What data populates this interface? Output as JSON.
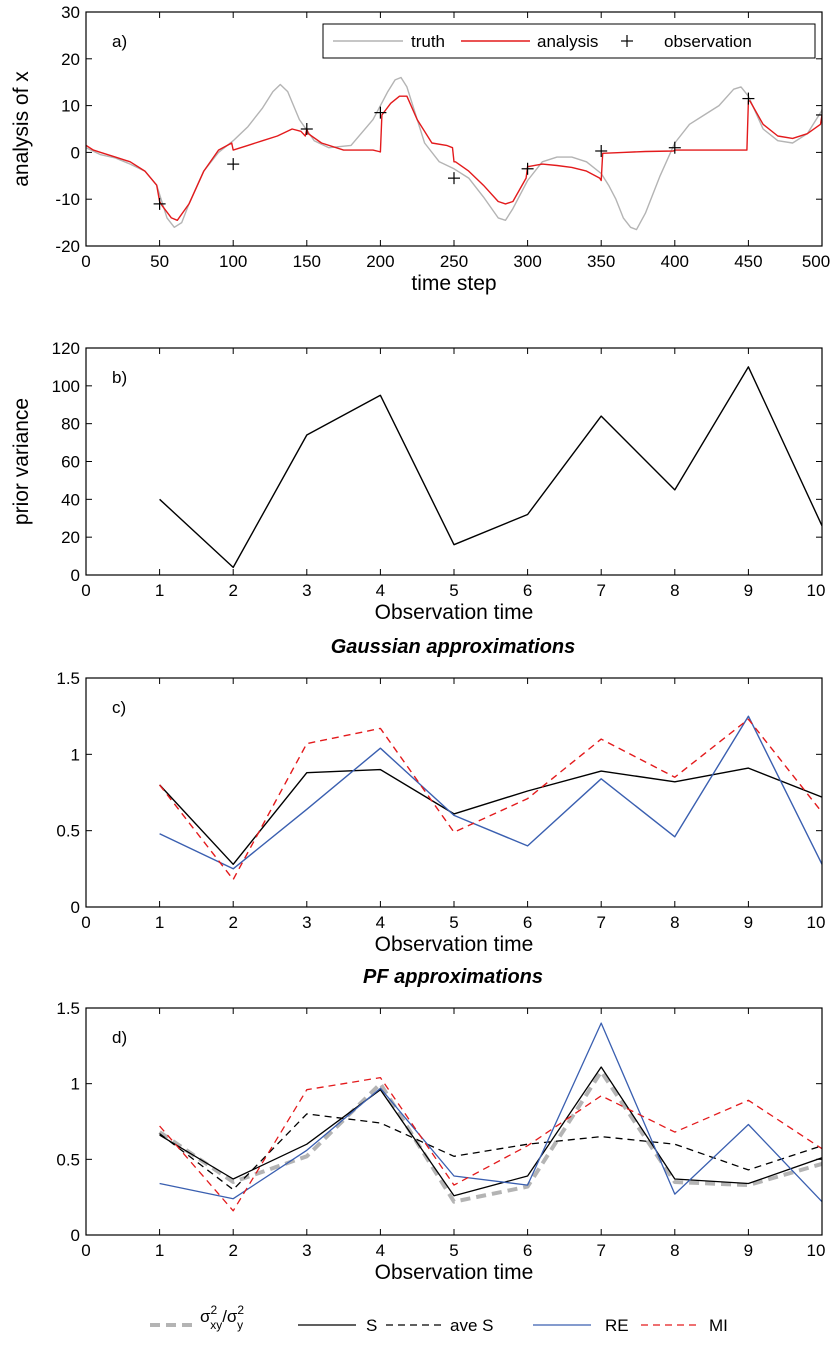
{
  "chart_data": [
    {
      "type": "line",
      "panel_label": "a)",
      "xlabel": "time step",
      "ylabel": "analysis of x",
      "xlim": [
        0,
        500
      ],
      "ylim": [
        -20,
        30
      ],
      "xticks": [
        0,
        50,
        100,
        150,
        200,
        250,
        300,
        350,
        400,
        450,
        500
      ],
      "yticks": [
        -20,
        -10,
        0,
        10,
        20,
        30
      ],
      "legend": {
        "placement": "top-right",
        "entries": [
          "truth",
          "analysis",
          "observation"
        ]
      },
      "series": [
        {
          "name": "truth",
          "color": "#b4b4b4",
          "x": [
            0,
            10,
            20,
            30,
            40,
            48,
            55,
            60,
            65,
            70,
            80,
            90,
            100,
            110,
            120,
            127,
            132,
            137,
            145,
            155,
            165,
            180,
            195,
            205,
            210,
            214,
            218,
            222,
            230,
            240,
            250,
            260,
            270,
            280,
            285,
            290,
            300,
            310,
            320,
            330,
            340,
            350,
            355,
            360,
            365,
            370,
            374,
            380,
            390,
            400,
            410,
            420,
            430,
            440,
            445,
            450,
            460,
            470,
            480,
            490,
            500
          ],
          "values": [
            1.0,
            -0.5,
            -1.2,
            -2.5,
            -4.0,
            -7.0,
            -14.0,
            -16.0,
            -15.0,
            -11.0,
            -4.0,
            0.0,
            2.5,
            5.5,
            9.5,
            13.0,
            14.5,
            13.0,
            7.0,
            2.5,
            1.0,
            1.5,
            7.0,
            13.0,
            15.5,
            16.0,
            14.0,
            10.0,
            2.0,
            -2.0,
            -3.5,
            -5.5,
            -9.5,
            -14.0,
            -14.5,
            -12.0,
            -6.0,
            -2.0,
            -1.0,
            -1.0,
            -2.0,
            -4.5,
            -7.0,
            -10.0,
            -14.0,
            -16.0,
            -16.5,
            -13.0,
            -5.0,
            2.0,
            6.0,
            8.0,
            10.0,
            13.5,
            14.0,
            12.0,
            5.0,
            2.5,
            2.0,
            4.0,
            9.0
          ]
        },
        {
          "name": "analysis",
          "color": "#e31a1c",
          "x": [
            0,
            5,
            10,
            20,
            30,
            40,
            48,
            50,
            52,
            58,
            62,
            70,
            80,
            90,
            99,
            100,
            110,
            120,
            130,
            140,
            146,
            149,
            150,
            151,
            160,
            175,
            195,
            199,
            200,
            201,
            207,
            213,
            218,
            225,
            235,
            245,
            249,
            250,
            251,
            260,
            270,
            280,
            285,
            290,
            299,
            300,
            301,
            310,
            320,
            330,
            340,
            349,
            350,
            351,
            365,
            380,
            399,
            400,
            401,
            420,
            440,
            449,
            450,
            451,
            460,
            470,
            480,
            490,
            499,
            500
          ],
          "values": [
            1.5,
            0.5,
            0.0,
            -1.0,
            -2.0,
            -4.0,
            -7.0,
            -10.5,
            -11.5,
            -14.0,
            -14.5,
            -11.0,
            -4.0,
            0.5,
            2.0,
            0.5,
            1.5,
            2.5,
            3.5,
            5.0,
            4.5,
            3.5,
            5.0,
            4.0,
            2.0,
            0.5,
            0.5,
            0.2,
            0.1,
            8.0,
            10.5,
            12.0,
            12.0,
            7.0,
            2.0,
            1.5,
            1.0,
            -2.0,
            -2.0,
            -4.0,
            -7.0,
            -10.5,
            -11.0,
            -10.5,
            -5.5,
            -3.0,
            -3.0,
            -2.5,
            -2.8,
            -3.2,
            -4.0,
            -5.5,
            -6.0,
            -0.2,
            0.0,
            0.2,
            0.3,
            0.5,
            0.5,
            0.5,
            0.5,
            0.5,
            11.0,
            11.0,
            6.0,
            3.5,
            3.0,
            4.0,
            6.0,
            8.0
          ]
        },
        {
          "name": "observation",
          "marker": "+",
          "x": [
            50,
            100,
            150,
            200,
            250,
            300,
            350,
            400,
            450,
            500
          ],
          "values": [
            -11,
            -2.5,
            5,
            8.5,
            -5.5,
            -3.5,
            0.3,
            1,
            11.5,
            8
          ]
        }
      ]
    },
    {
      "type": "line",
      "panel_label": "b)",
      "xlabel": "Observation time",
      "ylabel": "prior variance",
      "xlim": [
        0,
        10
      ],
      "ylim": [
        0,
        120
      ],
      "xticks": [
        0,
        1,
        2,
        3,
        4,
        5,
        6,
        7,
        8,
        9,
        10
      ],
      "yticks": [
        0,
        20,
        40,
        60,
        80,
        100,
        120
      ],
      "series": [
        {
          "color": "#000000",
          "x": [
            1,
            2,
            3,
            4,
            5,
            6,
            7,
            8,
            9,
            10
          ],
          "values": [
            40,
            4,
            74,
            95,
            16,
            32,
            84,
            45,
            110,
            26
          ]
        }
      ]
    },
    {
      "type": "line",
      "panel_label": "c)",
      "title": "Gaussian approximations",
      "xlabel": "Observation time",
      "xlim": [
        0,
        10
      ],
      "ylim": [
        0,
        1.5
      ],
      "xticks": [
        0,
        1,
        2,
        3,
        4,
        5,
        6,
        7,
        8,
        9,
        10
      ],
      "yticks": [
        0,
        0.5,
        1,
        1.5
      ],
      "series": [
        {
          "name": "S",
          "color": "#000000",
          "dash": "",
          "x": [
            1,
            2,
            3,
            4,
            5,
            6,
            7,
            8,
            9,
            10
          ],
          "values": [
            0.8,
            0.28,
            0.88,
            0.9,
            0.61,
            0.76,
            0.89,
            0.82,
            0.91,
            0.72
          ]
        },
        {
          "name": "RE",
          "color": "#3a5fb0",
          "dash": "",
          "x": [
            1,
            2,
            3,
            4,
            5,
            6,
            7,
            8,
            9,
            10
          ],
          "values": [
            0.48,
            0.25,
            0.64,
            1.04,
            0.6,
            0.4,
            0.84,
            0.46,
            1.25,
            0.28
          ]
        },
        {
          "name": "MI",
          "color": "#e31a1c",
          "dash": "7,5",
          "x": [
            1,
            2,
            3,
            4,
            5,
            6,
            7,
            8,
            9,
            10
          ],
          "values": [
            0.8,
            0.18,
            1.07,
            1.17,
            0.49,
            0.71,
            1.1,
            0.85,
            1.23,
            0.62
          ]
        }
      ]
    },
    {
      "type": "line",
      "panel_label": "d)",
      "title": "PF approximations",
      "xlabel": "Observation time",
      "xlim": [
        0,
        10
      ],
      "ylim": [
        0,
        1.5
      ],
      "xticks": [
        0,
        1,
        2,
        3,
        4,
        5,
        6,
        7,
        8,
        9,
        10
      ],
      "yticks": [
        0,
        0.5,
        1,
        1.5
      ],
      "series": [
        {
          "name": "σxy²/σy²",
          "color": "#b4b4b4",
          "dash": "10,6",
          "width": 4,
          "x": [
            1,
            2,
            3,
            4,
            5,
            6,
            7,
            8,
            9,
            10
          ],
          "values": [
            0.68,
            0.35,
            0.52,
            1.0,
            0.22,
            0.32,
            1.08,
            0.35,
            0.33,
            0.47
          ]
        },
        {
          "name": "S",
          "color": "#000000",
          "dash": "",
          "width": 1.3,
          "x": [
            1,
            2,
            3,
            4,
            5,
            6,
            7,
            8,
            9,
            10
          ],
          "values": [
            0.66,
            0.37,
            0.6,
            0.96,
            0.26,
            0.39,
            1.11,
            0.37,
            0.34,
            0.51
          ]
        },
        {
          "name": "ave S",
          "color": "#000000",
          "dash": "7,5",
          "width": 1.3,
          "x": [
            1,
            2,
            3,
            4,
            5,
            6,
            7,
            8,
            9,
            10
          ],
          "values": [
            0.67,
            0.3,
            0.8,
            0.74,
            0.52,
            0.6,
            0.65,
            0.6,
            0.43,
            0.59
          ]
        },
        {
          "name": "RE",
          "color": "#3a5fb0",
          "dash": "",
          "width": 1.3,
          "x": [
            1,
            2,
            3,
            4,
            5,
            6,
            7,
            8,
            9,
            10
          ],
          "values": [
            0.34,
            0.24,
            0.56,
            0.97,
            0.39,
            0.33,
            1.4,
            0.27,
            0.73,
            0.22
          ]
        },
        {
          "name": "MI",
          "color": "#e31a1c",
          "dash": "7,5",
          "width": 1.3,
          "x": [
            1,
            2,
            3,
            4,
            5,
            6,
            7,
            8,
            9,
            10
          ],
          "values": [
            0.72,
            0.16,
            0.96,
            1.04,
            0.33,
            0.59,
            0.92,
            0.68,
            0.89,
            0.57
          ]
        }
      ]
    }
  ],
  "bottom_legend": {
    "placement": "bottom",
    "entries": [
      {
        "label": "S",
        "color": "#000000",
        "dash": ""
      },
      {
        "label": "ave S",
        "color": "#000000",
        "dash": "7,5"
      },
      {
        "label": "RE",
        "color": "#3a5fb0",
        "dash": ""
      },
      {
        "label": "MI",
        "color": "#e31a1c",
        "dash": "7,5"
      }
    ],
    "sigma_entry": {
      "color": "#b4b4b4",
      "sigma": "σ",
      "sup": "2",
      "sub_num": "xy",
      "sub_den": "y",
      "slash": "/"
    }
  }
}
